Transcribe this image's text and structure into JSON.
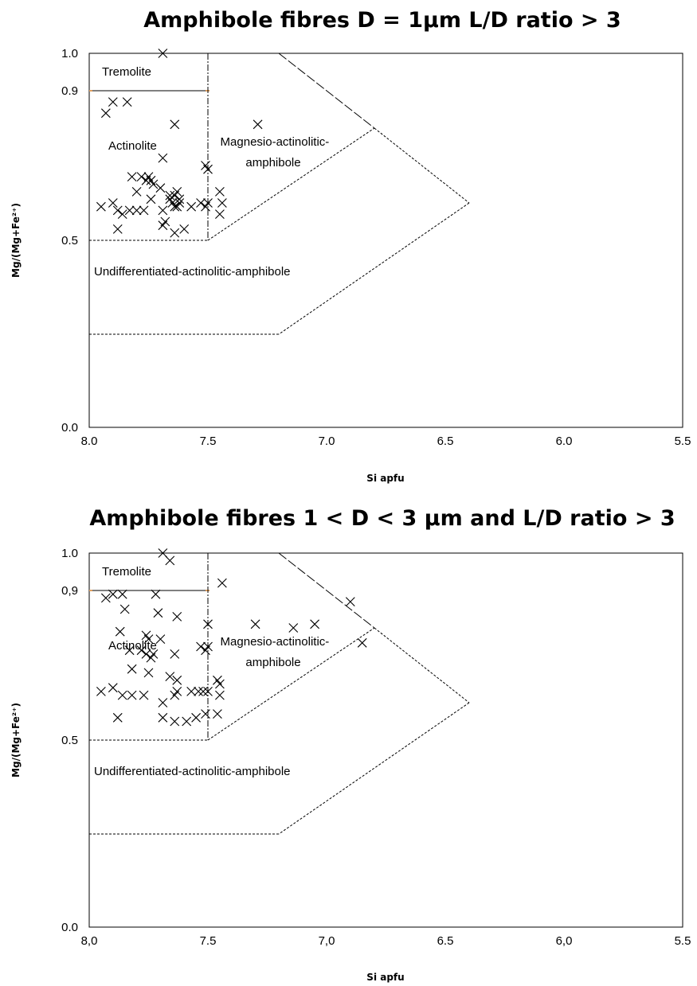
{
  "chart_data": [
    {
      "type": "scatter",
      "title": "Amphibole fibres D = 1µm L/D ratio > 3",
      "xlabel": "Si apfu",
      "ylabel": "Mg/(Mg+Fe²⁺)",
      "xlim": [
        8.0,
        5.5
      ],
      "ylim": [
        0.0,
        1.0
      ],
      "x_reversed": true,
      "grid": false,
      "xticks": [
        {
          "value": 8.0,
          "label": "8.0"
        },
        {
          "value": 7.5,
          "label": "7.5"
        },
        {
          "value": 7.0,
          "label": "7.0"
        },
        {
          "value": 6.5,
          "label": "6.5"
        },
        {
          "value": 6.0,
          "label": "6.0"
        },
        {
          "value": 5.5,
          "label": "5.5"
        }
      ],
      "yticks": [
        {
          "value": 0.0,
          "label": "0.0"
        },
        {
          "value": 0.5,
          "label": "0.5"
        },
        {
          "value": 0.9,
          "label": "0.9"
        },
        {
          "value": 1.0,
          "label": "1.0"
        }
      ],
      "regions": [
        "Tremolite",
        "Actinolite",
        "Magnesio-actinolitic-\namphibole",
        "Undifferentiated-actinolitic-amphibole"
      ],
      "marker": "x",
      "x": [
        7.69,
        7.93,
        7.9,
        7.84,
        7.64,
        7.29,
        7.69,
        7.51,
        7.5,
        7.82,
        7.78,
        7.75,
        7.76,
        7.74,
        7.73,
        7.7,
        7.66,
        7.64,
        7.63,
        7.45,
        7.8,
        7.74,
        7.66,
        7.62,
        7.44,
        7.95,
        7.9,
        7.88,
        7.86,
        7.83,
        7.8,
        7.77,
        7.69,
        7.64,
        7.63,
        7.57,
        7.51,
        7.53,
        7.5,
        7.65,
        7.62,
        7.45,
        7.88,
        7.69,
        7.68,
        7.64,
        7.6
      ],
      "y": [
        1.0,
        0.84,
        0.87,
        0.87,
        0.81,
        0.81,
        0.72,
        0.7,
        0.69,
        0.67,
        0.67,
        0.67,
        0.66,
        0.66,
        0.65,
        0.64,
        0.62,
        0.62,
        0.63,
        0.63,
        0.63,
        0.61,
        0.61,
        0.61,
        0.6,
        0.59,
        0.6,
        0.58,
        0.57,
        0.58,
        0.58,
        0.58,
        0.58,
        0.59,
        0.59,
        0.59,
        0.59,
        0.6,
        0.6,
        0.6,
        0.6,
        0.57,
        0.53,
        0.54,
        0.55,
        0.52,
        0.53
      ]
    },
    {
      "type": "scatter",
      "title": "Amphibole fibres 1 < D < 3 µm and L/D ratio > 3",
      "xlabel": "Si apfu",
      "ylabel": "Mg/(Mg+Fe²⁺)",
      "xlim": [
        8.0,
        5.5
      ],
      "ylim": [
        0.0,
        1.0
      ],
      "x_reversed": true,
      "grid": false,
      "xticks": [
        {
          "value": 8.0,
          "label": "8,0"
        },
        {
          "value": 7.5,
          "label": "7.5"
        },
        {
          "value": 7.0,
          "label": "7,0"
        },
        {
          "value": 6.5,
          "label": "6.5"
        },
        {
          "value": 6.0,
          "label": "6,0"
        },
        {
          "value": 5.5,
          "label": "5.5"
        }
      ],
      "yticks": [
        {
          "value": 0.0,
          "label": "0.0"
        },
        {
          "value": 0.5,
          "label": "0.5"
        },
        {
          "value": 0.9,
          "label": "0,9"
        },
        {
          "value": 1.0,
          "label": "1.0"
        }
      ],
      "regions": [
        "Tremolite",
        "Actinolite",
        "Magnesio-actinolitic-\namphibole",
        "Undifferentiated-actinolitic-amphibole"
      ],
      "marker": "x",
      "x": [
        7.69,
        7.66,
        7.44,
        7.93,
        7.9,
        7.86,
        7.85,
        7.72,
        7.63,
        7.71,
        7.3,
        6.9,
        7.14,
        7.05,
        6.85,
        7.5,
        7.87,
        7.76,
        7.75,
        7.7,
        7.64,
        7.53,
        7.51,
        7.5,
        7.83,
        7.78,
        7.76,
        7.74,
        7.73,
        7.46,
        7.82,
        7.75,
        7.66,
        7.63,
        7.45,
        7.45,
        7.95,
        7.9,
        7.86,
        7.82,
        7.77,
        7.69,
        7.64,
        7.63,
        7.57,
        7.54,
        7.52,
        7.5,
        7.88,
        7.69,
        7.64,
        7.59,
        7.55,
        7.51,
        7.46
      ],
      "y": [
        1.0,
        0.98,
        0.92,
        0.88,
        0.89,
        0.89,
        0.85,
        0.89,
        0.83,
        0.84,
        0.81,
        0.87,
        0.8,
        0.81,
        0.76,
        0.81,
        0.79,
        0.78,
        0.77,
        0.77,
        0.73,
        0.75,
        0.74,
        0.75,
        0.74,
        0.74,
        0.73,
        0.72,
        0.73,
        0.66,
        0.69,
        0.68,
        0.67,
        0.66,
        0.65,
        0.62,
        0.63,
        0.64,
        0.62,
        0.62,
        0.62,
        0.6,
        0.62,
        0.63,
        0.63,
        0.63,
        0.63,
        0.63,
        0.56,
        0.56,
        0.55,
        0.55,
        0.56,
        0.57,
        0.57
      ]
    }
  ]
}
